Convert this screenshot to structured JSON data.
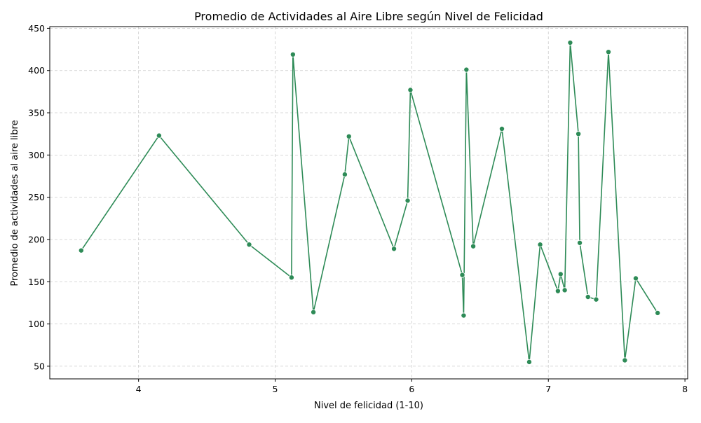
{
  "chart_data": {
    "type": "line",
    "title": "Promedio de Actividades al Aire Libre según Nivel de Felicidad",
    "xlabel": "Nivel de felicidad (1-10)",
    "ylabel": "Promedio de actividades al aire libre",
    "xlim": [
      3.35,
      8.02
    ],
    "ylim": [
      35,
      452
    ],
    "xticks": [
      4,
      5,
      6,
      7,
      8
    ],
    "yticks": [
      50,
      100,
      150,
      200,
      250,
      300,
      350,
      400,
      450
    ],
    "xtick_labels": [
      "4",
      "5",
      "6",
      "7",
      "8"
    ],
    "ytick_labels": [
      "50",
      "100",
      "150",
      "200",
      "250",
      "300",
      "350",
      "400",
      "450"
    ],
    "grid": true,
    "colors": {
      "line": "#2e8b57",
      "marker": "#2e8b57",
      "grid": "#cccccc",
      "axis": "#000000"
    },
    "series": [
      {
        "x": [
          3.58,
          4.15,
          4.81,
          5.12,
          5.13,
          5.28,
          5.51,
          5.54,
          5.87,
          5.97,
          5.99,
          6.37,
          6.38,
          6.4,
          6.45,
          6.66,
          6.86,
          6.94,
          7.07,
          7.09,
          7.12,
          7.16,
          7.22,
          7.23,
          7.29,
          7.35,
          7.44,
          7.56,
          7.64,
          7.8
        ],
        "y": [
          187,
          323,
          194,
          155,
          419,
          114,
          277,
          322,
          189,
          246,
          377,
          158,
          110,
          401,
          192,
          331,
          55,
          194,
          139,
          159,
          140,
          433,
          325,
          196,
          132,
          129,
          422,
          57,
          154,
          113
        ]
      }
    ]
  }
}
